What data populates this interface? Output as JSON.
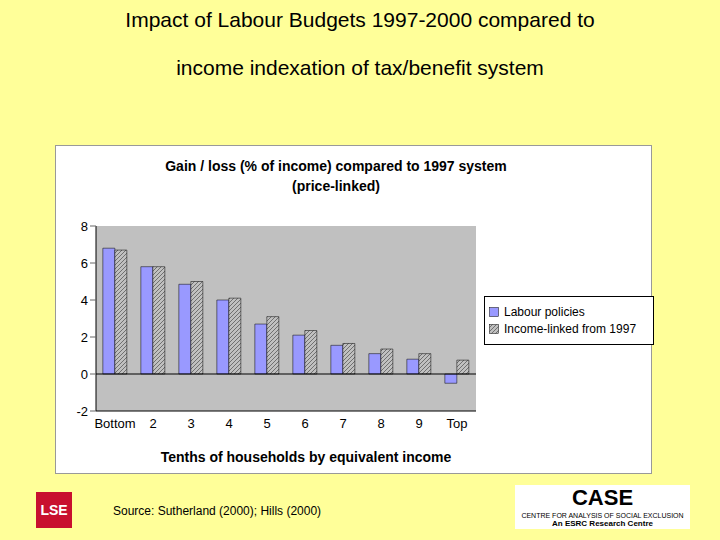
{
  "heading": [
    "Impact of Labour Budgets 1997-2000 compared to",
    "income indexation of tax/benefit system"
  ],
  "chart_data": {
    "type": "bar",
    "title": "Gain / loss (% of income) compared to 1997 system (price-linked)",
    "x_label": "Tenths of households by equivalent income",
    "categories": [
      "Bottom",
      "2",
      "3",
      "4",
      "5",
      "6",
      "7",
      "8",
      "9",
      "Top"
    ],
    "series": [
      {
        "name": "Labour policies",
        "color": "#9999FF",
        "values": [
          6.8,
          5.8,
          4.85,
          4.0,
          2.7,
          2.1,
          1.55,
          1.1,
          0.8,
          -0.5
        ]
      },
      {
        "name": "Income-linked from 1997",
        "color": "#C0C0C0",
        "values": [
          6.7,
          5.8,
          5.0,
          4.1,
          3.1,
          2.35,
          1.65,
          1.35,
          1.1,
          0.75
        ]
      }
    ],
    "ylim": [
      -2,
      8
    ],
    "yticks": [
      -2,
      0,
      2,
      4,
      6,
      8
    ],
    "grid": false,
    "legend": "right"
  },
  "footer": {
    "source": "Source: Sutherland (2000); Hills (2000)",
    "logos": [
      "LSE",
      "CASE",
      "CENTRE FOR ANALYSIS OF SOCIAL EXCLUSION",
      "An ESRC Research Centre"
    ]
  }
}
